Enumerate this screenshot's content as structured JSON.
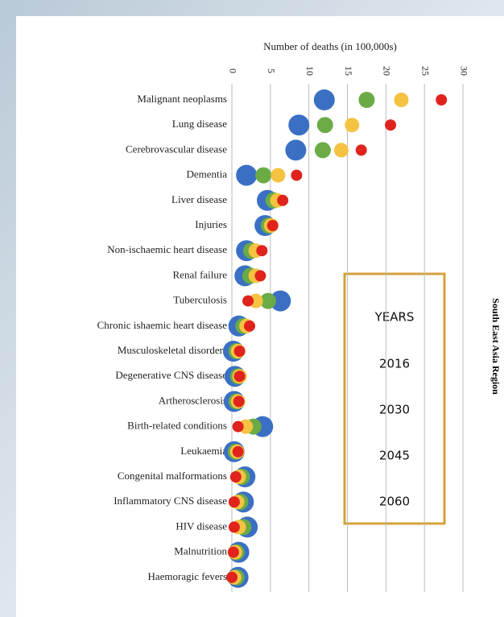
{
  "chart_data": {
    "type": "dot",
    "x_label": "Number of deaths (in 100,000s)",
    "side_label": "South East Asia Region",
    "legend_title": "YEARS",
    "categories": [
      "Malignant neoplasms",
      "Lung disease",
      "Cerebrovascular disease",
      "Dementia",
      "Liver disease",
      "Injuries",
      "Non-ischaemic heart disease",
      "Renal failure",
      "Tuberculosis",
      "Chronic ishaemic heart disease",
      "Musculoskeletal disorders",
      "Degenerative CNS disease",
      "Artherosclerosis",
      "Birth-related conditions",
      "Leukaemia",
      "Congenital malformations",
      "Inflammatory CNS disease",
      "HIV disease",
      "Malnutrition",
      "Haemoragic fevers"
    ],
    "series": [
      {
        "name": "2016",
        "color": "#3a6fc4",
        "values": [
          12.0,
          8.7,
          8.3,
          1.9,
          4.6,
          4.3,
          1.9,
          1.7,
          6.3,
          0.9,
          0.2,
          0.4,
          0.3,
          4.0,
          0.3,
          1.7,
          1.5,
          2.0,
          0.9,
          0.8
        ]
      },
      {
        "name": "2030",
        "color": "#6aab45",
        "values": [
          17.5,
          12.1,
          11.8,
          4.1,
          5.4,
          4.8,
          2.5,
          2.4,
          4.7,
          1.5,
          0.6,
          0.8,
          0.6,
          2.8,
          0.5,
          1.3,
          1.1,
          1.5,
          0.6,
          0.6
        ]
      },
      {
        "name": "2045",
        "color": "#f5c242",
        "values": [
          22.0,
          15.6,
          14.2,
          6.0,
          5.9,
          5.1,
          3.1,
          3.1,
          3.1,
          1.9,
          0.8,
          1.0,
          0.8,
          1.8,
          0.7,
          0.9,
          0.7,
          0.9,
          0.4,
          0.3
        ]
      },
      {
        "name": "2060",
        "color": "#e0231c",
        "values": [
          27.2,
          20.6,
          16.8,
          8.4,
          6.6,
          5.3,
          3.9,
          3.7,
          2.1,
          2.3,
          1.0,
          1.0,
          0.9,
          0.8,
          0.8,
          0.5,
          0.3,
          0.3,
          0.2,
          0.0
        ]
      }
    ],
    "xlim": [
      0,
      30
    ],
    "xticks": [
      0,
      5,
      10,
      15,
      20,
      25,
      30
    ],
    "grid": true
  }
}
